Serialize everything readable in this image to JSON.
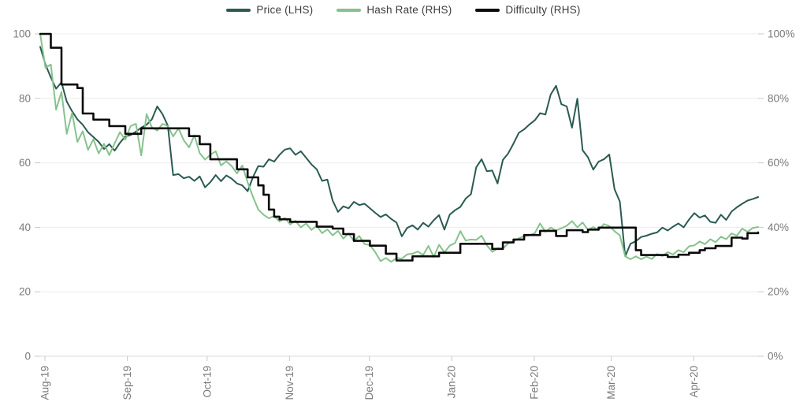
{
  "legend": {
    "items": [
      {
        "label": "Price (LHS)",
        "color": "#2a5a52"
      },
      {
        "label": "Hash Rate (RHS)",
        "color": "#86c28d"
      },
      {
        "label": "Difficulty (RHS)",
        "color": "#0a0a0a"
      }
    ]
  },
  "colors": {
    "price": "#2a5a52",
    "hash_rate": "#86c28d",
    "difficulty": "#0a0a0a",
    "axis_text": "#7a7a7a",
    "gridline": "#ececec",
    "baseline": "#d8d8d8",
    "tick": "#c9c9c9",
    "background": "#ffffff"
  },
  "chart_data": {
    "type": "line",
    "title": "",
    "xlabel": "",
    "ylabel_left": "",
    "ylabel_right": "",
    "grid": true,
    "legend_position": "top-center",
    "x_domain_days": [
      0,
      270
    ],
    "x_tick_days": [
      0,
      31,
      61,
      92,
      122,
      153,
      184,
      213,
      244
    ],
    "x_tick_labels": [
      "Aug-19",
      "Sep-19",
      "Oct-19",
      "Nov-19",
      "Dec-19",
      "Jan-20",
      "Feb-20",
      "Mar-20",
      "Apr-20"
    ],
    "left_axis": {
      "ticks": [
        0,
        20,
        40,
        60,
        80,
        100
      ],
      "labels": [
        "0",
        "20",
        "40",
        "60",
        "80",
        "100"
      ],
      "range": [
        0,
        100
      ]
    },
    "right_axis": {
      "ticks": [
        0,
        20,
        40,
        60,
        80,
        100
      ],
      "labels": [
        "0%",
        "20%",
        "40%",
        "60%",
        "80%",
        "100%"
      ],
      "range": [
        0,
        100
      ]
    },
    "sample_step_days": 2,
    "series": [
      {
        "name": "Price (LHS)",
        "axis": "left",
        "color": "#2a5a52",
        "width": 2,
        "render": "line",
        "values": [
          96,
          90.5,
          86.5,
          83,
          85,
          79,
          76,
          73.5,
          71.8,
          69.5,
          68,
          66.5,
          64.3,
          65.8,
          63.8,
          66.2,
          68.2,
          68.6,
          69.7,
          70.9,
          71.8,
          73.5,
          77.5,
          75.1,
          71.5,
          56.2,
          56.5,
          55.2,
          55.7,
          54.4,
          55.8,
          52.4,
          54,
          56.2,
          54.3,
          56.1,
          55.1,
          53.6,
          53,
          51.2,
          55.5,
          59,
          58.8,
          61.1,
          60.4,
          62.5,
          64.1,
          64.5,
          62.5,
          63.6,
          61.6,
          59.5,
          58,
          54.4,
          54.8,
          48.3,
          44.8,
          46.5,
          45.9,
          47.9,
          46.9,
          47.3,
          45.9,
          44.5,
          43.2,
          44,
          42.6,
          41.5,
          37.2,
          39.8,
          40.6,
          39.3,
          41.4,
          40.2,
          42.2,
          43.8,
          39.3,
          43.9,
          45.3,
          46.3,
          48.9,
          50.3,
          58.6,
          61.1,
          57.4,
          57.6,
          53.6,
          60.9,
          62.9,
          66,
          69.3,
          70.4,
          71.9,
          73.2,
          75.4,
          75,
          81.2,
          83.9,
          78.2,
          77.5,
          70.9,
          79.9,
          63.9,
          61.7,
          57.9,
          60.4,
          61.1,
          62.6,
          51.8,
          48,
          31,
          34.9,
          35.7,
          37,
          37.4,
          38,
          38.4,
          39.9,
          39,
          40.2,
          41.2,
          40,
          42.4,
          44.4,
          43,
          43.7,
          41.7,
          41.4,
          43.9,
          42.3,
          44.9,
          46.2,
          47.3,
          48.3,
          48.8,
          49.4
        ]
      },
      {
        "name": "Hash Rate (RHS)",
        "axis": "right",
        "color": "#86c28d",
        "width": 2,
        "render": "line",
        "values": [
          100,
          89.5,
          90.5,
          76.5,
          82,
          69,
          75.5,
          66.5,
          69.8,
          64,
          67.3,
          62.9,
          65.9,
          62.4,
          66.1,
          69.5,
          67.2,
          71.4,
          72.1,
          62.3,
          75.1,
          71,
          70,
          72.1,
          71.4,
          68.2,
          70.7,
          67,
          64.8,
          68.5,
          63,
          61,
          62.5,
          63.6,
          59.2,
          60.5,
          59,
          56.7,
          59.2,
          54,
          49.5,
          45.5,
          43.9,
          42.8,
          43.5,
          41.8,
          42.9,
          40.9,
          42,
          40,
          41.2,
          39.2,
          40.5,
          38.2,
          39.4,
          37.5,
          38.9,
          36.5,
          38.1,
          35.7,
          37.3,
          34.8,
          34.5,
          32.3,
          29.5,
          30.5,
          29.3,
          30.5,
          30.3,
          31.6,
          31.8,
          32.5,
          31.4,
          34.2,
          30.8,
          34.6,
          32.2,
          34.3,
          35.1,
          38.8,
          35.9,
          36.2,
          36.1,
          37.4,
          34.4,
          32.4,
          33.5,
          33.4,
          35,
          35.6,
          36.6,
          37.3,
          37.5,
          38.2,
          41.2,
          38.6,
          39.9,
          39,
          39.7,
          40.5,
          41.9,
          40,
          41.5,
          39.2,
          40.1,
          39.1,
          41,
          40.4,
          38.8,
          37.5,
          31,
          30.1,
          31,
          30.1,
          30.9,
          30.2,
          31.7,
          31.1,
          32.3,
          31.6,
          32.9,
          32.3,
          34.1,
          34.4,
          35.6,
          34.8,
          36.3,
          35.4,
          37.1,
          36.3,
          38.1,
          37.4,
          39.6,
          38.6,
          39.8,
          40.1
        ]
      },
      {
        "name": "Difficulty (RHS)",
        "axis": "right",
        "color": "#0a0a0a",
        "width": 2.6,
        "render": "step",
        "values": [
          100,
          100,
          95.7,
          95.7,
          84.3,
          84.3,
          84.3,
          83.2,
          75.3,
          75.3,
          73.4,
          73.4,
          73.4,
          71.4,
          71.4,
          71.4,
          69,
          69,
          69,
          70.7,
          70.7,
          70.7,
          70.7,
          70.7,
          70.7,
          70.7,
          70.7,
          70.7,
          68.3,
          68.3,
          65.8,
          65.8,
          61.1,
          61.1,
          61.1,
          61.1,
          61.1,
          58,
          58,
          55.5,
          55.5,
          53,
          50.1,
          45.5,
          43.3,
          42.5,
          42.5,
          41.7,
          41.7,
          41.7,
          41.7,
          41.7,
          40.2,
          40.2,
          40.2,
          39.6,
          39.6,
          37.9,
          37.9,
          35.8,
          35.8,
          35.8,
          34.3,
          34.3,
          34.3,
          31.8,
          31.8,
          29.7,
          29.7,
          29.7,
          31,
          31,
          31,
          31,
          31,
          32.1,
          32.1,
          32.1,
          32.1,
          34.9,
          34.9,
          34.9,
          34.9,
          34.9,
          34.9,
          33.3,
          33.3,
          35.3,
          35.3,
          36.2,
          36.2,
          37.6,
          37.6,
          37.6,
          38.9,
          38.9,
          38.9,
          37.3,
          37.3,
          39.1,
          39.1,
          39.1,
          38.5,
          39.3,
          39.3,
          39.9,
          39.9,
          39.9,
          39.9,
          39.9,
          39.9,
          39.9,
          32.9,
          31.4,
          31.4,
          31.4,
          31.4,
          31.4,
          30.8,
          30.8,
          31.5,
          31.5,
          32.1,
          32.1,
          32.9,
          33.5,
          33.5,
          34.2,
          34.2,
          34.2,
          36.8,
          36.8,
          36.5,
          38.2,
          38.2,
          38.4
        ]
      }
    ]
  }
}
